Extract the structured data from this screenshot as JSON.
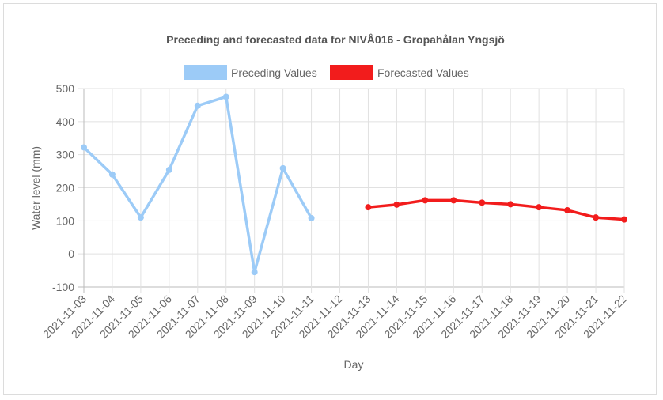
{
  "chart_data": {
    "type": "line",
    "title": "Preceding and forecasted data for NIVÅ016 - Gropahålan Yngsjö",
    "xlabel": "Day",
    "ylabel": "Water level (mm)",
    "ylim": [
      -100,
      500
    ],
    "yticks": [
      -100,
      0,
      100,
      200,
      300,
      400,
      500
    ],
    "grid": true,
    "legend_position": "top",
    "categories": [
      "2021-11-03",
      "2021-11-04",
      "2021-11-05",
      "2021-11-06",
      "2021-11-07",
      "2021-11-08",
      "2021-11-09",
      "2021-11-10",
      "2021-11-11",
      "2021-11-12",
      "2021-11-13",
      "2021-11-14",
      "2021-11-15",
      "2021-11-16",
      "2021-11-17",
      "2021-11-18",
      "2021-11-19",
      "2021-11-20",
      "2021-11-21",
      "2021-11-22"
    ],
    "series": [
      {
        "name": "Preceding Values",
        "color": "#9ccbf7",
        "values": [
          322,
          240,
          110,
          254,
          448,
          475,
          -55,
          259,
          108,
          null,
          null,
          null,
          null,
          null,
          null,
          null,
          null,
          null,
          null,
          null
        ]
      },
      {
        "name": "Forecasted Values",
        "color": "#f21c1c",
        "values": [
          null,
          null,
          null,
          null,
          null,
          null,
          null,
          null,
          null,
          null,
          141,
          149,
          162,
          162,
          155,
          150,
          141,
          132,
          110,
          104
        ]
      }
    ]
  }
}
